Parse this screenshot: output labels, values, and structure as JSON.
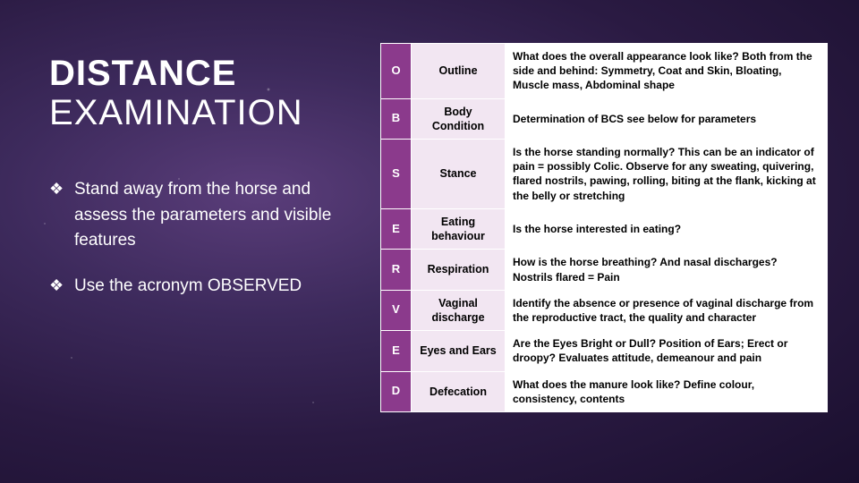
{
  "title": {
    "line1": "DISTANCE",
    "line2": "EXAMINATION"
  },
  "bullets": [
    "Stand away from the horse and assess the parameters and visible features",
    "Use the acronym OBSERVED"
  ],
  "table": {
    "columns": [
      "letter",
      "term",
      "description"
    ],
    "rows": [
      {
        "letter": "O",
        "term": "Outline",
        "desc": "What does the overall appearance look like? Both from the side and behind: Symmetry, Coat and Skin, Bloating, Muscle mass, Abdominal shape"
      },
      {
        "letter": "B",
        "term": "Body Condition",
        "desc": "Determination of BCS see below for parameters"
      },
      {
        "letter": "S",
        "term": "Stance",
        "desc": "Is the horse standing normally? This can be an indicator of pain = possibly Colic. Observe for any sweating, quivering, flared nostrils, pawing, rolling, biting at the flank, kicking at the belly or stretching"
      },
      {
        "letter": "E",
        "term": "Eating behaviour",
        "desc": "Is the horse interested in eating?"
      },
      {
        "letter": "R",
        "term": "Respiration",
        "desc": "How is the horse breathing? And nasal discharges? Nostrils flared = Pain"
      },
      {
        "letter": "V",
        "term": "Vaginal discharge",
        "desc": "Identify the absence or presence of vaginal discharge from the reproductive tract, the quality and character"
      },
      {
        "letter": "E",
        "term": "Eyes and Ears",
        "desc": "Are the Eyes Bright or Dull? Position of Ears; Erect or droopy? Evaluates attitude, demeanour and pain"
      },
      {
        "letter": "D",
        "term": "Defecation",
        "desc": "What does the manure look like? Define colour, consistency, contents"
      }
    ],
    "styles": {
      "letter_bg": "#8b3a8c",
      "letter_color": "#ffffff",
      "term_bg": "#f2e6f2",
      "desc_bg": "#ffffff",
      "border_color": "#ffffff",
      "font_weight": 700
    }
  },
  "background": {
    "type": "radial-gradient-cosmic",
    "colors": [
      "#5a3d7a",
      "#3d2a5c",
      "#2a1a42",
      "#1a0f2e"
    ]
  }
}
